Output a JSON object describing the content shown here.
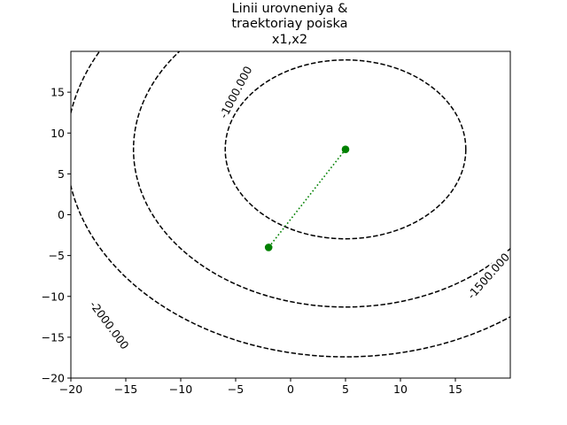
{
  "chart_data": {
    "type": "contour",
    "title_lines": [
      "Linii urovneniya &",
      "traektoriay poiska",
      "x1,x2"
    ],
    "xlim": [
      -20,
      20
    ],
    "ylim": [
      -20,
      20
    ],
    "xticks": [
      -20,
      -15,
      -10,
      -5,
      0,
      5,
      10,
      15
    ],
    "yticks": [
      -20,
      -15,
      -10,
      -5,
      0,
      5,
      10,
      15
    ],
    "grid": false,
    "legend": "none",
    "contour_center": [
      5,
      8
    ],
    "contour_style": "dashed",
    "contour_color": "#000000",
    "contours": [
      {
        "label": "-1000.000",
        "radius": 10.95,
        "label_at": [
          -5.0,
          15.0
        ]
      },
      {
        "label": "-1500.000",
        "radius": 19.3,
        "label_at": [
          18.0,
          -7.5
        ]
      },
      {
        "label": "-2000.000",
        "radius": 25.4,
        "label_at": [
          -16.5,
          -13.5
        ]
      }
    ],
    "trajectory": {
      "color": "#008000",
      "line_style": "dotted",
      "marker": "circle",
      "points": [
        [
          5,
          8
        ],
        [
          -2,
          -4
        ]
      ]
    }
  }
}
